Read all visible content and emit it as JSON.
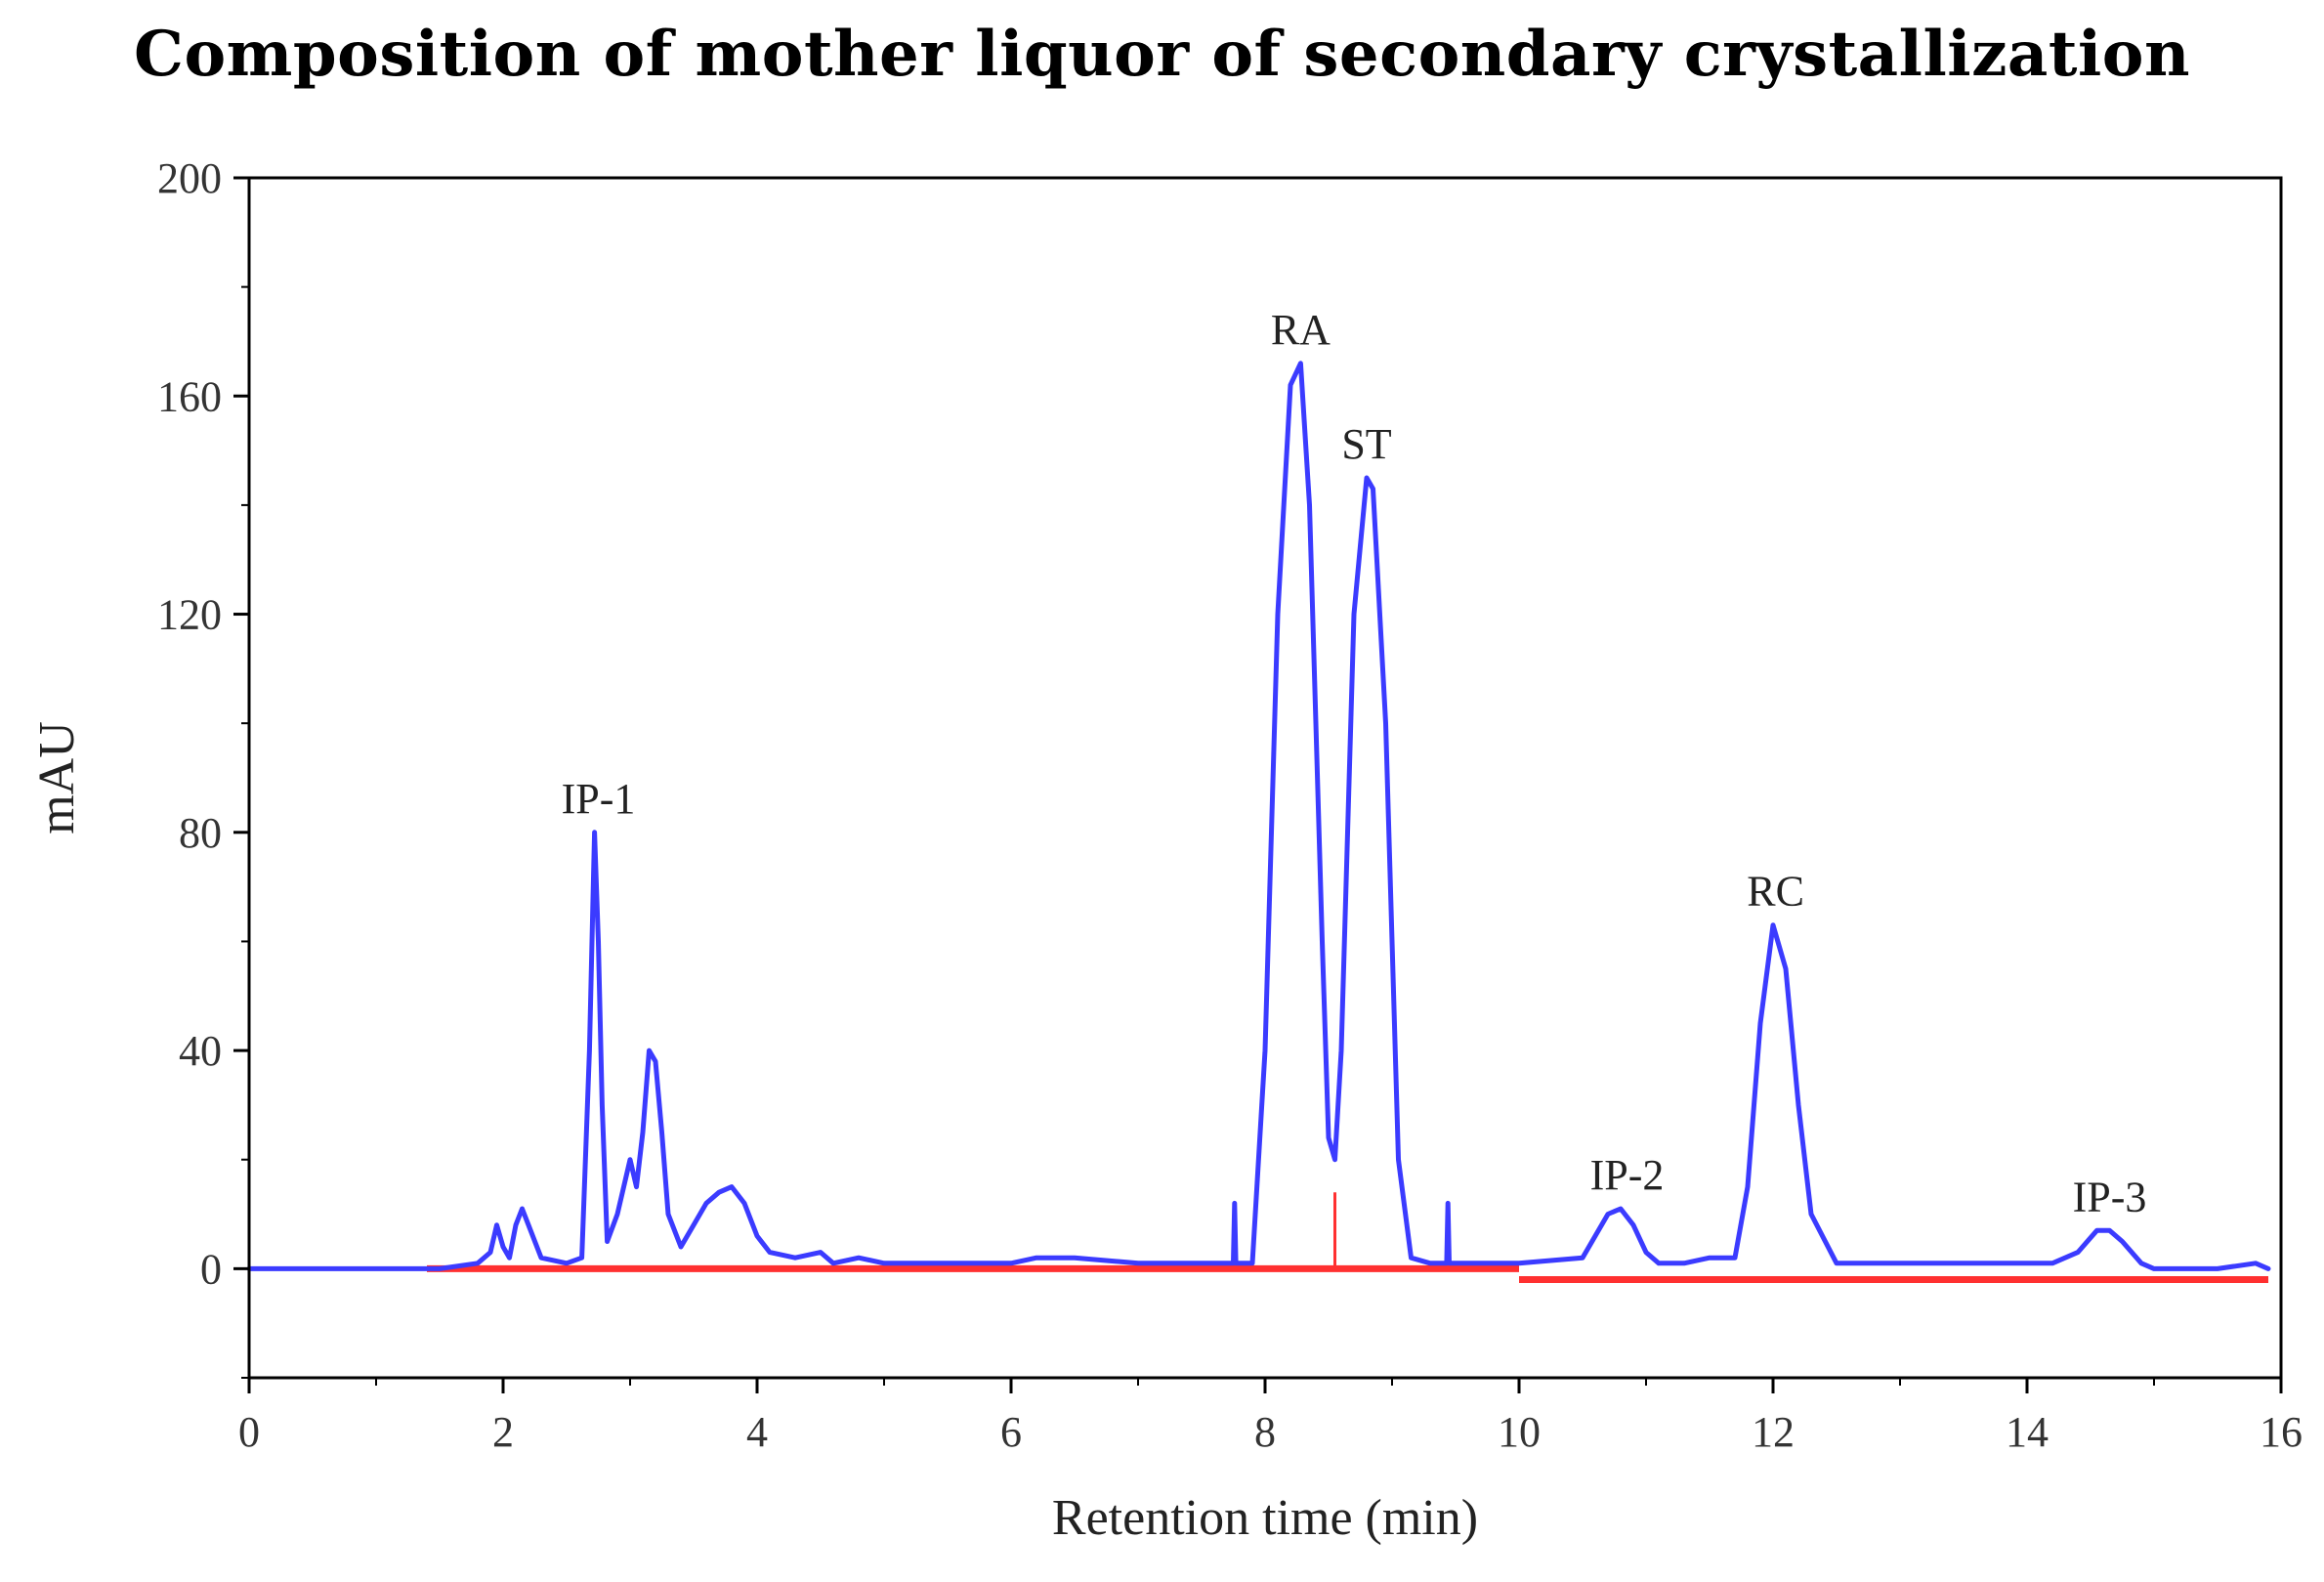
{
  "chart_data": {
    "type": "line",
    "title": "Composition of mother liquor of secondary crystallization",
    "xlabel": "Retention time (min)",
    "ylabel": "mAU",
    "xlim": [
      0,
      16
    ],
    "ylim": [
      -20,
      200
    ],
    "xticks": [
      0,
      2,
      4,
      6,
      8,
      10,
      12,
      14,
      16
    ],
    "yticks": [
      0,
      40,
      80,
      120,
      160,
      200
    ],
    "grid": false,
    "legend": "none",
    "colors": {
      "signal": "#3b3bff",
      "baseline": "#ff3030",
      "axis": "#000000"
    },
    "series": [
      {
        "x": [
          0,
          1.5,
          1.8,
          1.9,
          1.95,
          2.0,
          2.05,
          2.1,
          2.15,
          2.2,
          2.3,
          2.5,
          2.62,
          2.68,
          2.72,
          2.75,
          2.78,
          2.82,
          2.9,
          3.0,
          3.05,
          3.1,
          3.15,
          3.2,
          3.25,
          3.3,
          3.4,
          3.5,
          3.6,
          3.7,
          3.8,
          3.9,
          4.0,
          4.1,
          4.3,
          4.5,
          4.6,
          4.8,
          5.0,
          5.5,
          6.0,
          6.2,
          6.5,
          7.0,
          7.5,
          7.75,
          7.76,
          7.77,
          7.9,
          8.0,
          8.1,
          8.2,
          8.28,
          8.35,
          8.45,
          8.5,
          8.55,
          8.6,
          8.7,
          8.8,
          8.85,
          8.95,
          9.05,
          9.15,
          9.3,
          9.43,
          9.44,
          9.45,
          9.6,
          10.0,
          10.5,
          10.6,
          10.7,
          10.8,
          10.9,
          11.0,
          11.1,
          11.2,
          11.3,
          11.5,
          11.7,
          11.8,
          11.9,
          12.0,
          12.1,
          12.2,
          12.3,
          12.5,
          12.8,
          13.0,
          13.5,
          14.0,
          14.2,
          14.4,
          14.55,
          14.65,
          14.75,
          14.9,
          15.0,
          15.5,
          15.8,
          15.9
        ],
        "y": [
          0,
          0,
          1,
          3,
          8,
          4,
          2,
          8,
          11,
          8,
          2,
          1,
          2,
          40,
          80,
          60,
          30,
          5,
          10,
          20,
          15,
          25,
          40,
          38,
          25,
          10,
          4,
          8,
          12,
          14,
          15,
          12,
          6,
          3,
          2,
          3,
          1,
          2,
          1,
          1,
          1,
          2,
          2,
          1,
          1,
          1,
          12,
          1,
          1,
          40,
          120,
          162,
          166,
          140,
          60,
          24,
          20,
          40,
          120,
          145,
          143,
          100,
          20,
          2,
          1,
          1,
          12,
          1,
          1,
          1,
          2,
          6,
          10,
          11,
          8,
          3,
          1,
          1,
          1,
          2,
          2,
          15,
          45,
          63,
          55,
          30,
          10,
          1,
          1,
          1,
          1,
          1,
          1,
          3,
          7,
          7,
          5,
          1,
          0,
          0,
          1,
          0
        ]
      }
    ],
    "baseline": {
      "segments": [
        {
          "x": [
            1.4,
            10.0
          ],
          "y": [
            0,
            0
          ]
        },
        {
          "x": [
            10.0,
            15.9
          ],
          "y": [
            -2,
            -2
          ]
        }
      ],
      "marker_x": 8.55,
      "marker_y": [
        0,
        14
      ]
    },
    "peak_labels": [
      {
        "text": "IP-1",
        "x": 2.75,
        "y": 80
      },
      {
        "text": "RA",
        "x": 8.28,
        "y": 166
      },
      {
        "text": "ST",
        "x": 8.8,
        "y": 145
      },
      {
        "text": "IP-2",
        "x": 10.85,
        "y": 11
      },
      {
        "text": "RC",
        "x": 12.02,
        "y": 63
      },
      {
        "text": "IP-3",
        "x": 14.65,
        "y": 7
      }
    ]
  }
}
